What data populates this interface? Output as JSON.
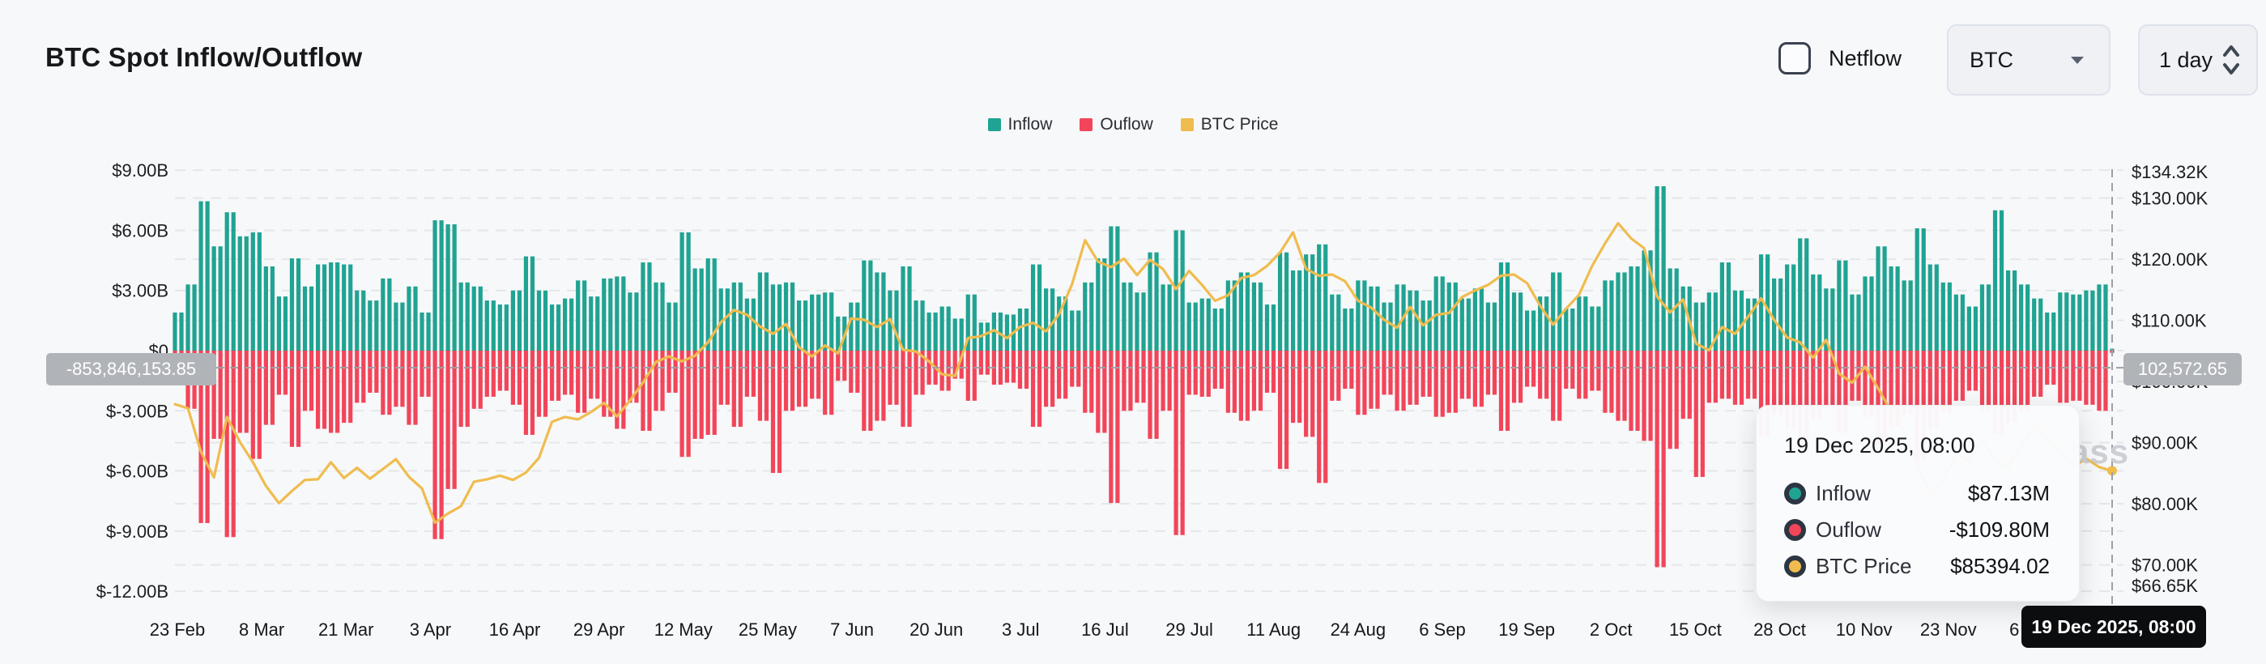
{
  "header": {
    "title": "BTC Spot Inflow/Outflow",
    "netflow_label": "Netflow",
    "symbol_select": {
      "value": "BTC"
    },
    "interval_select": {
      "value": "1 day"
    }
  },
  "legend": {
    "items": [
      {
        "label": "Inflow",
        "color": "#20a392"
      },
      {
        "label": "Ouflow",
        "color": "#f2455a"
      },
      {
        "label": "BTC Price",
        "color": "#f0bc4e"
      }
    ]
  },
  "colors": {
    "background": "#f7f8f9",
    "inflow": "#20a392",
    "outflow": "#f2455a",
    "price_line": "#f0bc4e",
    "gridline": "#e4e6e9",
    "crosshair": "#9ca1a8",
    "axis_badge": "#b0b4b9",
    "date_badge": "#0c0d0f",
    "watermark": "#ccd0d5"
  },
  "crosshair": {
    "left_axis_value": "-853,846,153.85",
    "right_axis_value": "102,572.65",
    "x_axis_label": "19 Dec 2025, 08:00"
  },
  "tooltip": {
    "title": "19 Dec 2025, 08:00",
    "rows": [
      {
        "label": "Inflow",
        "value": "$87.13M",
        "color": "#20a392"
      },
      {
        "label": "Ouflow",
        "value": "-$109.80M",
        "color": "#f2455a"
      },
      {
        "label": "BTC Price",
        "value": "$85394.02",
        "color": "#f0bc4e"
      }
    ]
  },
  "watermark": "ass",
  "chart_data": {
    "type": "combo",
    "title": "BTC Spot Inflow/Outflow",
    "sample_interval_days": 2,
    "x_tick_labels": [
      "23 Feb",
      "8 Mar",
      "21 Mar",
      "3 Apr",
      "16 Apr",
      "29 Apr",
      "12 May",
      "25 May",
      "7 Jun",
      "20 Jun",
      "3 Jul",
      "16 Jul",
      "29 Jul",
      "11 Aug",
      "24 Aug",
      "6 Sep",
      "19 Sep",
      "2 Oct",
      "15 Oct",
      "28 Oct",
      "10 Nov",
      "23 Nov",
      "6 Dec",
      "19 Dec"
    ],
    "left_axis": {
      "unit": "USD billions",
      "tick_values": [
        9,
        6,
        3,
        0,
        -3,
        -6,
        -9,
        -12
      ],
      "tick_labels": [
        "$9.00B",
        "$6.00B",
        "$3.00B",
        "$0",
        "$-3.00B",
        "$-6.00B",
        "$-9.00B",
        "$-12.00B"
      ],
      "range": [
        -12,
        9
      ],
      "grid": "dashed"
    },
    "right_axis": {
      "unit": "USD thousands",
      "tick_values": [
        134.32,
        130,
        120,
        110,
        100,
        90,
        80,
        70,
        66.65
      ],
      "tick_labels": [
        "$134.32K",
        "$130.00K",
        "$120.00K",
        "$110.00K",
        "$100.00K",
        "$90.00K",
        "$80.00K",
        "$70.00K",
        "$66.65K"
      ],
      "range": [
        66.65,
        134.32
      ],
      "grid": "dashed"
    },
    "series": [
      {
        "name": "Inflow",
        "type": "bar",
        "axis": "left",
        "color": "#20a392",
        "values": [
          1.9,
          3.3,
          7.45,
          5.2,
          6.9,
          5.7,
          5.9,
          4.2,
          2.7,
          4.6,
          3.2,
          4.3,
          4.4,
          4.3,
          3.0,
          2.5,
          3.6,
          2.4,
          3.2,
          1.9,
          6.5,
          6.3,
          3.4,
          3.2,
          2.5,
          2.3,
          3.0,
          4.7,
          3.0,
          2.3,
          2.6,
          3.5,
          2.7,
          3.6,
          3.7,
          2.9,
          4.4,
          3.4,
          2.4,
          5.9,
          4.1,
          4.6,
          3.1,
          3.4,
          2.6,
          3.9,
          3.3,
          3.4,
          2.5,
          2.8,
          2.9,
          1.7,
          2.4,
          4.5,
          3.9,
          3.0,
          4.2,
          2.5,
          1.9,
          2.2,
          1.6,
          2.8,
          1.4,
          1.9,
          1.8,
          2.1,
          4.3,
          3.1,
          2.7,
          2.0,
          3.4,
          4.6,
          6.2,
          3.4,
          2.9,
          4.9,
          3.3,
          6.0,
          2.4,
          2.6,
          2.1,
          3.5,
          3.9,
          3.4,
          2.3,
          4.9,
          4.0,
          4.8,
          5.3,
          2.8,
          2.1,
          3.5,
          3.2,
          2.4,
          3.3,
          3.0,
          2.5,
          3.7,
          3.4,
          2.6,
          3.1,
          2.4,
          4.4,
          2.9,
          2.0,
          2.7,
          3.9,
          2.1,
          2.7,
          2.2,
          3.5,
          3.9,
          4.2,
          5.0,
          8.2,
          4.1,
          3.2,
          2.4,
          2.9,
          4.4,
          3.0,
          2.6,
          4.8,
          3.6,
          4.3,
          5.6,
          3.8,
          3.1,
          4.5,
          2.8,
          3.7,
          5.2,
          4.2,
          3.5,
          6.1,
          4.3,
          3.4,
          2.8,
          2.2,
          3.3,
          7.0,
          4.0,
          3.3,
          2.6,
          1.9,
          2.9,
          2.8,
          3.0,
          3.3,
          0.09
        ]
      },
      {
        "name": "Ouflow",
        "type": "bar",
        "axis": "left",
        "color": "#f2455a",
        "values": [
          -1.3,
          -2.9,
          -8.6,
          -4.4,
          -9.3,
          -4.1,
          -5.4,
          -3.7,
          -2.2,
          -4.8,
          -3.0,
          -3.9,
          -4.1,
          -3.6,
          -2.6,
          -2.1,
          -3.2,
          -2.8,
          -3.7,
          -2.3,
          -9.4,
          -6.9,
          -3.8,
          -2.9,
          -2.3,
          -2.0,
          -2.7,
          -4.2,
          -3.3,
          -2.5,
          -2.2,
          -3.1,
          -2.4,
          -3.3,
          -3.9,
          -2.6,
          -4.0,
          -3.0,
          -2.1,
          -5.3,
          -4.4,
          -4.2,
          -2.7,
          -3.8,
          -2.3,
          -3.5,
          -6.1,
          -3.0,
          -2.8,
          -2.4,
          -3.2,
          -1.5,
          -2.1,
          -4.0,
          -3.5,
          -2.7,
          -3.8,
          -2.2,
          -1.7,
          -2.0,
          -1.4,
          -2.5,
          -1.2,
          -1.7,
          -1.6,
          -1.9,
          -3.8,
          -2.8,
          -2.4,
          -1.8,
          -3.1,
          -4.1,
          -7.6,
          -3.0,
          -2.6,
          -4.4,
          -3.0,
          -9.2,
          -2.2,
          -2.3,
          -1.9,
          -3.1,
          -3.5,
          -3.0,
          -2.1,
          -5.9,
          -3.6,
          -4.3,
          -6.6,
          -2.5,
          -1.9,
          -3.2,
          -2.9,
          -2.2,
          -3.0,
          -2.7,
          -2.3,
          -3.3,
          -3.1,
          -2.4,
          -2.8,
          -2.2,
          -4.0,
          -2.6,
          -1.8,
          -2.4,
          -3.5,
          -1.9,
          -2.4,
          -2.0,
          -3.1,
          -3.5,
          -4.0,
          -4.5,
          -10.8,
          -4.9,
          -3.4,
          -6.3,
          -2.6,
          -2.4,
          -2.7,
          -2.4,
          -4.3,
          -3.2,
          -3.9,
          -5.0,
          -3.4,
          -2.8,
          -4.1,
          -2.5,
          -3.3,
          -4.7,
          -3.8,
          -3.2,
          -5.5,
          -3.9,
          -3.1,
          -2.5,
          -2.0,
          -3.0,
          -4.2,
          -3.6,
          -3.0,
          -2.3,
          -1.7,
          -2.6,
          -2.5,
          -2.7,
          -3.0,
          -0.11
        ]
      },
      {
        "name": "BTC Price",
        "type": "line",
        "axis": "right",
        "color": "#f0bc4e",
        "values": [
          96.3,
          95.6,
          88.5,
          84.3,
          94.2,
          90.1,
          86.8,
          82.9,
          80.1,
          82.1,
          83.9,
          84.0,
          86.8,
          84.2,
          85.9,
          84.1,
          85.7,
          87.3,
          84.4,
          82.5,
          76.9,
          78.4,
          79.6,
          83.6,
          84.0,
          84.6,
          83.9,
          85.1,
          87.5,
          93.4,
          94.2,
          93.8,
          95.0,
          96.5,
          94.3,
          96.9,
          99.8,
          103.2,
          104.1,
          103.3,
          104.2,
          106.4,
          109.7,
          111.7,
          110.9,
          109.0,
          107.8,
          109.4,
          105.6,
          104.1,
          105.9,
          104.6,
          110.3,
          110.1,
          108.9,
          110.2,
          105.2,
          104.9,
          103.3,
          101.2,
          100.9,
          107.1,
          107.4,
          108.4,
          107.1,
          108.9,
          109.6,
          108.2,
          111.0,
          115.9,
          123.1,
          119.6,
          118.7,
          120.1,
          117.4,
          119.9,
          118.4,
          115.1,
          118.1,
          115.8,
          113.2,
          114.1,
          116.9,
          117.4,
          118.9,
          121.1,
          124.4,
          118.4,
          117.3,
          117.5,
          116.4,
          113.2,
          112.1,
          110.1,
          108.8,
          112.2,
          109.2,
          110.9,
          111.2,
          113.8,
          114.9,
          115.8,
          117.3,
          117.5,
          116.1,
          112.4,
          109.3,
          111.9,
          114.2,
          118.9,
          122.6,
          125.9,
          123.4,
          121.8,
          113.9,
          111.3,
          113.4,
          106.2,
          105.1,
          108.9,
          107.8,
          110.6,
          113.6,
          110.1,
          107.2,
          106.4,
          103.9,
          106.8,
          101.3,
          99.8,
          102.4,
          98.9,
          95.1,
          92.3,
          86.4,
          81.6,
          83.9,
          88.1,
          86.9,
          90.3,
          87.2,
          85.9,
          89.4,
          92.7,
          90.8,
          88.5,
          86.1,
          87.4,
          86.0,
          85.394
        ]
      }
    ]
  }
}
